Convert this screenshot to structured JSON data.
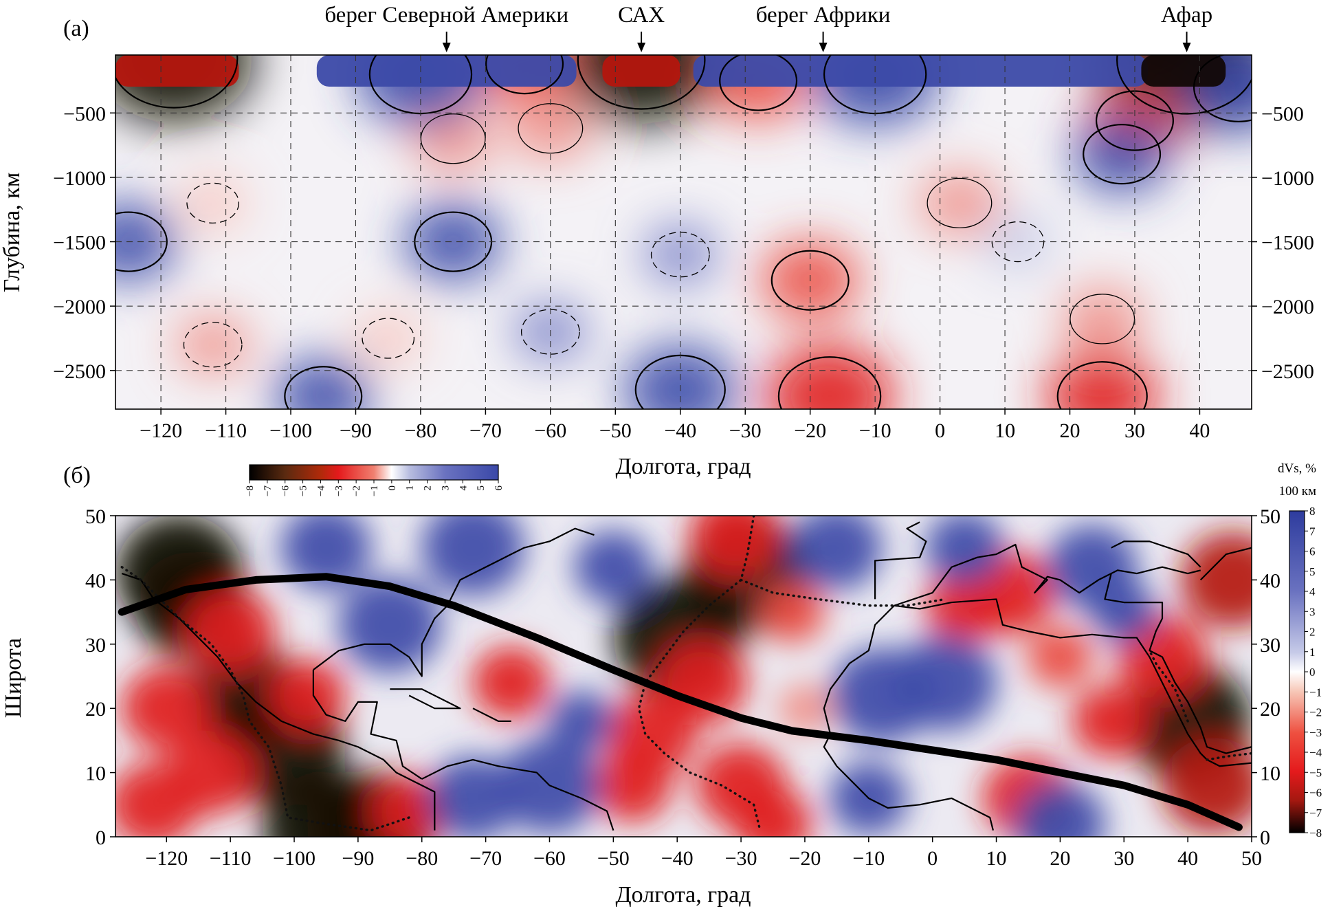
{
  "chart_data": [
    {
      "panel": "(а)",
      "type": "heatmap",
      "xlabel": "Долгота, град",
      "ylabel": "Глубина, км",
      "x_ticks": [
        -120,
        -110,
        -100,
        -90,
        -80,
        -70,
        -60,
        -50,
        -40,
        -30,
        -20,
        -10,
        0,
        10,
        20,
        30,
        40
      ],
      "y_ticks": [
        -500,
        -1000,
        -1500,
        -2000,
        -2500
      ],
      "y_tick_labels": [
        "−500",
        "−1000",
        "−1500",
        "−2000",
        "−2500"
      ],
      "xlim": [
        -127,
        48
      ],
      "ylim": [
        -2800,
        -50
      ],
      "annotations": [
        {
          "label": "берег Северной Америки",
          "x": -76
        },
        {
          "label": "САХ",
          "x": -46
        },
        {
          "label": "берег Африки",
          "x": -18
        },
        {
          "label": "Афар",
          "x": 38
        }
      ],
      "anomalies": [
        {
          "x": -118,
          "depth": -80,
          "dvs": -7
        },
        {
          "x": -46,
          "depth": -90,
          "dvs": -7
        },
        {
          "x": 38,
          "depth": -90,
          "dvs": -8
        },
        {
          "x": -64,
          "depth": -120,
          "dvs": -3
        },
        {
          "x": -28,
          "depth": -250,
          "dvs": -3
        },
        {
          "x": -75,
          "depth": -700,
          "dvs": -2
        },
        {
          "x": -60,
          "depth": -620,
          "dvs": -2
        },
        {
          "x": 30,
          "depth": -560,
          "dvs": -3
        },
        {
          "x": 3,
          "depth": -1200,
          "dvs": -2
        },
        {
          "x": -20,
          "depth": -1800,
          "dvs": -3
        },
        {
          "x": -17,
          "depth": -2700,
          "dvs": -5
        },
        {
          "x": 25,
          "depth": -2700,
          "dvs": -4
        },
        {
          "x": 25,
          "depth": -2100,
          "dvs": -2
        },
        {
          "x": -112,
          "depth": -2300,
          "dvs": -1.5
        },
        {
          "x": -112,
          "depth": -1200,
          "dvs": -1
        },
        {
          "x": -80,
          "depth": -200,
          "dvs": 5
        },
        {
          "x": -10,
          "depth": -200,
          "dvs": 5
        },
        {
          "x": -75,
          "depth": -1500,
          "dvs": 3
        },
        {
          "x": -95,
          "depth": -2700,
          "dvs": 3
        },
        {
          "x": -40,
          "depth": -2650,
          "dvs": 4
        },
        {
          "x": 46,
          "depth": -300,
          "dvs": 4
        },
        {
          "x": 28,
          "depth": -820,
          "dvs": 3
        },
        {
          "x": -125,
          "depth": -1500,
          "dvs": 3
        },
        {
          "x": -40,
          "depth": -1600,
          "dvs": 1.5
        },
        {
          "x": -60,
          "depth": -2200,
          "dvs": 1.5
        },
        {
          "x": 12,
          "depth": -1500,
          "dvs": 1
        },
        {
          "x": -85,
          "depth": -2250,
          "dvs": -1
        }
      ],
      "colorbar": {
        "ticks": [
          -8,
          -7,
          -6,
          -5,
          -4,
          -3,
          -2,
          -1,
          0,
          1,
          2,
          3,
          4,
          5,
          6
        ],
        "tick_labels": [
          "−8",
          "−7",
          "−6",
          "−5",
          "−4",
          "−3",
          "−2",
          "−1",
          "0",
          "1",
          "2",
          "3",
          "4",
          "5",
          "6"
        ],
        "range": [
          -8,
          6
        ]
      }
    },
    {
      "panel": "(б)",
      "type": "heatmap",
      "xlabel": "Долгота, град",
      "ylabel": "Широта",
      "x_ticks": [
        -120,
        -110,
        -100,
        -90,
        -80,
        -70,
        -60,
        -50,
        -40,
        -30,
        -20,
        -10,
        0,
        10,
        20,
        30,
        40,
        50
      ],
      "y_ticks": [
        0,
        10,
        20,
        30,
        40,
        50
      ],
      "xlim": [
        -128,
        50
      ],
      "ylim": [
        0,
        50
      ],
      "profile_line": [
        {
          "x": -127,
          "y": 35
        },
        {
          "x": -117,
          "y": 38.5
        },
        {
          "x": -106,
          "y": 40
        },
        {
          "x": -95,
          "y": 40.5
        },
        {
          "x": -85,
          "y": 39
        },
        {
          "x": -75,
          "y": 36
        },
        {
          "x": -62,
          "y": 31
        },
        {
          "x": -50,
          "y": 26
        },
        {
          "x": -40,
          "y": 22
        },
        {
          "x": -30,
          "y": 18.5
        },
        {
          "x": -22,
          "y": 16.5
        },
        {
          "x": -10,
          "y": 15
        },
        {
          "x": 0,
          "y": 13.5
        },
        {
          "x": 10,
          "y": 12
        },
        {
          "x": 20,
          "y": 10
        },
        {
          "x": 30,
          "y": 8
        },
        {
          "x": 40,
          "y": 5
        },
        {
          "x": 48,
          "y": 1.5
        }
      ],
      "anomalies": [
        {
          "x": -118,
          "y": 41,
          "dvs": -8
        },
        {
          "x": -116,
          "y": 36,
          "dvs": -7
        },
        {
          "x": -108,
          "y": 22,
          "dvs": -7
        },
        {
          "x": -102,
          "y": 14,
          "dvs": -8
        },
        {
          "x": -95,
          "y": 1,
          "dvs": -8
        },
        {
          "x": -88,
          "y": 1,
          "dvs": -8
        },
        {
          "x": -120,
          "y": 20,
          "dvs": -5
        },
        {
          "x": -122,
          "y": 5,
          "dvs": -5
        },
        {
          "x": -110,
          "y": 32,
          "dvs": -5
        },
        {
          "x": -113,
          "y": 10,
          "dvs": -5
        },
        {
          "x": -98,
          "y": 22,
          "dvs": -4
        },
        {
          "x": -82,
          "y": 4,
          "dvs": -4
        },
        {
          "x": -29,
          "y": 41,
          "dvs": -8
        },
        {
          "x": -40,
          "y": 31,
          "dvs": -8
        },
        {
          "x": -31,
          "y": 47,
          "dvs": -5
        },
        {
          "x": -36,
          "y": 24,
          "dvs": -5
        },
        {
          "x": -44,
          "y": 16,
          "dvs": -5
        },
        {
          "x": -30,
          "y": 8,
          "dvs": -5
        },
        {
          "x": -25,
          "y": 2,
          "dvs": -4
        },
        {
          "x": -47,
          "y": 8,
          "dvs": -4
        },
        {
          "x": -22,
          "y": 35,
          "dvs": -3
        },
        {
          "x": 40,
          "y": 18,
          "dvs": -8
        },
        {
          "x": 44,
          "y": 8,
          "dvs": -6
        },
        {
          "x": 36,
          "y": 28,
          "dvs": -5
        },
        {
          "x": 47,
          "y": 40,
          "dvs": -6
        },
        {
          "x": 12,
          "y": 38,
          "dvs": -5
        },
        {
          "x": 5,
          "y": 36,
          "dvs": -4
        },
        {
          "x": 15,
          "y": 6,
          "dvs": -5
        },
        {
          "x": 28,
          "y": 18,
          "dvs": -4
        },
        {
          "x": 20,
          "y": 28,
          "dvs": -3
        },
        {
          "x": -66,
          "y": 24,
          "dvs": -4
        },
        {
          "x": -20,
          "y": 20,
          "dvs": -2
        },
        {
          "x": -85,
          "y": 33,
          "dvs": 6
        },
        {
          "x": -72,
          "y": 45,
          "dvs": 6
        },
        {
          "x": -95,
          "y": 45,
          "dvs": 5
        },
        {
          "x": -60,
          "y": 8,
          "dvs": 6
        },
        {
          "x": -72,
          "y": 6,
          "dvs": 5
        },
        {
          "x": -8,
          "y": 22,
          "dvs": 6
        },
        {
          "x": 2,
          "y": 24,
          "dvs": 6
        },
        {
          "x": -15,
          "y": 45,
          "dvs": 5
        },
        {
          "x": 5,
          "y": 45,
          "dvs": 4
        },
        {
          "x": 25,
          "y": 42,
          "dvs": 5
        },
        {
          "x": -50,
          "y": 42,
          "dvs": 4
        },
        {
          "x": -10,
          "y": 6,
          "dvs": 4
        },
        {
          "x": 20,
          "y": 2,
          "dvs": 5
        },
        {
          "x": -55,
          "y": 18,
          "dvs": 3
        },
        {
          "x": 30,
          "y": 35,
          "dvs": 3
        }
      ],
      "colorbar": {
        "title": "dVs, %",
        "subtitle": "100 км",
        "ticks": [
          8,
          7,
          6,
          5,
          4,
          3,
          2,
          1,
          0,
          -1,
          -2,
          -3,
          -4,
          -5,
          -6,
          -7,
          -8
        ],
        "tick_labels": [
          "8",
          "7",
          "6",
          "5",
          "4",
          "3",
          "2",
          "1",
          "0",
          "−1",
          "−2",
          "−3",
          "−4",
          "−5",
          "−6",
          "−7",
          "−8"
        ],
        "range": [
          -8,
          8
        ]
      }
    }
  ]
}
